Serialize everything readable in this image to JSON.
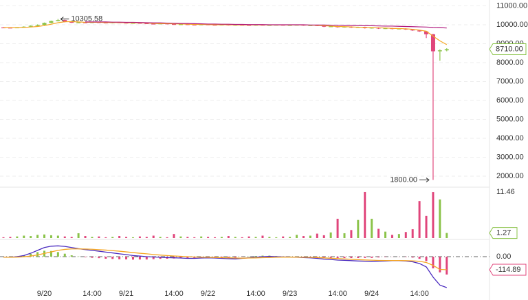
{
  "chart_data": [
    {
      "type": "candlestick",
      "categories": [
        null,
        null,
        null,
        null,
        null,
        null,
        "9/20",
        null,
        null,
        null,
        null,
        null,
        null,
        "14:00",
        null,
        null,
        null,
        null,
        "9/21",
        null,
        null,
        null,
        null,
        null,
        null,
        "14:00",
        null,
        null,
        null,
        null,
        "9/22",
        null,
        null,
        null,
        null,
        null,
        null,
        "14:00",
        null,
        null,
        null,
        null,
        "9/23",
        null,
        null,
        null,
        null,
        null,
        null,
        "14:00",
        null,
        null,
        null,
        null,
        "9/24",
        null,
        null,
        null,
        null,
        null,
        null,
        "14:00",
        null,
        null,
        null,
        null
      ],
      "open": [
        9860,
        9850,
        9840,
        9860,
        9900,
        9950,
        10000,
        10100,
        10200,
        10250,
        10150,
        10120,
        10130,
        10110,
        10140,
        10120,
        10100,
        10130,
        10110,
        10090,
        10100,
        10080,
        10060,
        10050,
        10070,
        10040,
        10020,
        10030,
        10010,
        10000,
        10020,
        10000,
        9990,
        10010,
        9980,
        10000,
        9990,
        9970,
        10000,
        9980,
        9990,
        10000,
        9980,
        9990,
        10000,
        9970,
        9980,
        9950,
        9900,
        9920,
        9870,
        9900,
        9850,
        9880,
        9820,
        9850,
        9800,
        9820,
        9780,
        9800,
        9750,
        9700,
        9650,
        9500,
        8600,
        8650
      ],
      "high": [
        9880,
        9870,
        9880,
        9920,
        9970,
        10020,
        10120,
        10220,
        10305.58,
        10270,
        10170,
        10150,
        10150,
        10160,
        10160,
        10140,
        10150,
        10150,
        10130,
        10120,
        10120,
        10100,
        10080,
        10090,
        10090,
        10060,
        10050,
        10050,
        10030,
        10040,
        10040,
        10020,
        10030,
        10030,
        10020,
        10020,
        10010,
        10020,
        10020,
        10010,
        10020,
        10020,
        10010,
        10020,
        10020,
        10000,
        10000,
        9970,
        9940,
        9940,
        9920,
        9920,
        9900,
        9900,
        9870,
        9870,
        9840,
        9840,
        9820,
        9820,
        9770,
        9720,
        9670,
        9520,
        8700,
        8760
      ],
      "low": [
        9830,
        9820,
        9820,
        9840,
        9880,
        9930,
        9980,
        10080,
        10180,
        10130,
        10100,
        10100,
        10090,
        10090,
        10100,
        10080,
        10080,
        10090,
        10070,
        10070,
        10060,
        10040,
        10030,
        10030,
        10020,
        10000,
        10000,
        9990,
        9980,
        9980,
        9980,
        9970,
        9970,
        9960,
        9960,
        9970,
        9950,
        9950,
        9960,
        9960,
        9970,
        9960,
        9960,
        9970,
        9950,
        9950,
        9930,
        9880,
        9880,
        9850,
        9850,
        9830,
        9830,
        9800,
        9800,
        9780,
        9780,
        9760,
        9760,
        9730,
        9680,
        9630,
        9300,
        1800,
        8100,
        8600
      ],
      "close": [
        9850,
        9840,
        9860,
        9900,
        9950,
        10000,
        10100,
        10200,
        10250,
        10150,
        10120,
        10130,
        10110,
        10140,
        10120,
        10100,
        10130,
        10110,
        10090,
        10100,
        10080,
        10060,
        10050,
        10070,
        10040,
        10020,
        10030,
        10010,
        10000,
        10020,
        10000,
        9990,
        10010,
        9980,
        10000,
        9990,
        9970,
        10000,
        9980,
        9990,
        10000,
        9980,
        9990,
        10000,
        9970,
        9980,
        9950,
        9900,
        9920,
        9870,
        9900,
        9850,
        9880,
        9820,
        9850,
        9800,
        9820,
        9780,
        9800,
        9750,
        9700,
        9650,
        9500,
        8600,
        8650,
        8710
      ],
      "up_color": "#8bc34a",
      "down_color": "#e0457b",
      "lines": [
        {
          "color": "#f5a623",
          "values": [
            9850,
            9850,
            9850,
            9860,
            9880,
            9910,
            9960,
            10030,
            10110,
            10160,
            10170,
            10150,
            10130,
            10130,
            10130,
            10120,
            10120,
            10120,
            10110,
            10100,
            10100,
            10090,
            10070,
            10060,
            10060,
            10050,
            10040,
            10030,
            10020,
            10020,
            10010,
            10000,
            10000,
            10000,
            9990,
            9990,
            9990,
            9990,
            9990,
            9990,
            9990,
            9990,
            9990,
            9990,
            9990,
            9980,
            9970,
            9950,
            9930,
            9910,
            9900,
            9890,
            9870,
            9860,
            9850,
            9840,
            9830,
            9810,
            9800,
            9790,
            9760,
            9720,
            9660,
            9400,
            9150,
            8950
          ]
        },
        {
          "color": "#b0197e",
          "values": [
            null,
            null,
            null,
            null,
            null,
            null,
            null,
            null,
            null,
            null,
            null,
            null,
            10150,
            10150,
            10150,
            10150,
            10140,
            10140,
            10130,
            10130,
            10120,
            10110,
            10100,
            10100,
            10090,
            10080,
            10070,
            10070,
            10060,
            10050,
            10040,
            10040,
            10030,
            10030,
            10020,
            10020,
            10010,
            10010,
            10010,
            10000,
            10000,
            10000,
            10000,
            10000,
            10000,
            9990,
            9990,
            9990,
            9980,
            9980,
            9970,
            9970,
            9960,
            9950,
            9950,
            9940,
            9930,
            9930,
            9920,
            9910,
            9900,
            9890,
            9880,
            9860,
            9850,
            9830
          ]
        }
      ],
      "high_label_index_free": null,
      "low_label": "1800.00",
      "last_label": "8710.00",
      "ylim": [
        1420,
        11310
      ],
      "yticks": [
        {
          "value": 11000,
          "label": "11000.00"
        },
        {
          "value": 10000,
          "label": "10000.00"
        },
        {
          "value": 9000,
          "label": "9000.00"
        },
        {
          "value": 8000,
          "label": "8000.00"
        },
        {
          "value": 7000,
          "label": "7000.00"
        },
        {
          "value": 6000,
          "label": "6000.00"
        },
        {
          "value": 5000,
          "label": "5000.00"
        },
        {
          "value": 4000,
          "label": "4000.00"
        },
        {
          "value": 3000,
          "label": "3000.00"
        },
        {
          "value": 2000,
          "label": "2000.00"
        }
      ],
      "grid": true
    },
    {
      "type": "bar",
      "values": [
        0.2,
        0.3,
        0.4,
        0.6,
        0.5,
        0.8,
        0.9,
        0.7,
        0.6,
        0.4,
        0.3,
        1.2,
        0.5,
        0.3,
        0.4,
        0.2,
        0.3,
        0.5,
        0.3,
        0.2,
        0.4,
        0.3,
        0.6,
        0.3,
        0.2,
        1.0,
        0.4,
        0.3,
        0.2,
        0.4,
        0.3,
        0.2,
        0.3,
        0.5,
        0.3,
        0.2,
        0.4,
        0.3,
        0.6,
        0.3,
        0.2,
        0.4,
        0.3,
        0.8,
        0.5,
        0.6,
        1.1,
        0.7,
        1.4,
        4.8,
        1.2,
        2.0,
        4.5,
        11.46,
        4.8,
        2.3,
        1.6,
        0.8,
        1.0,
        1.5,
        2.2,
        9.2,
        5.5,
        11.44,
        9.6,
        1.27
      ],
      "ylim": [
        0,
        12.65
      ],
      "yticks": [
        11.46
      ],
      "grid": false
    },
    {
      "type": "line",
      "series": [
        {
          "color": "#4a2bbf",
          "values": [
            -5,
            -5,
            0,
            10,
            30,
            55,
            80,
            92,
            95,
            90,
            80,
            70,
            62,
            55,
            48,
            40,
            33,
            25,
            18,
            10,
            5,
            0,
            -3,
            -5,
            -8,
            -10,
            -12,
            -15,
            -15,
            -12,
            -10,
            -12,
            -15,
            -18,
            -20,
            -15,
            -10,
            -5,
            0,
            2,
            0,
            -2,
            -3,
            -5,
            -8,
            -10,
            -15,
            -22,
            -25,
            -30,
            -32,
            -35,
            -38,
            -40,
            -42,
            -40,
            -38,
            -35,
            -35,
            -38,
            -45,
            -60,
            -90,
            -180,
            -250,
            -272
          ]
        },
        {
          "color": "#f5a623",
          "values": [
            -5,
            -5,
            -4,
            -1,
            5,
            15,
            28,
            42,
            55,
            64,
            68,
            68,
            67,
            65,
            61,
            58,
            53,
            48,
            42,
            36,
            30,
            25,
            19,
            14,
            10,
            6,
            3,
            0,
            -3,
            -5,
            -6,
            -7,
            -9,
            -10,
            -12,
            -13,
            -12,
            -11,
            -9,
            -7,
            -5,
            -4,
            -4,
            -4,
            -5,
            -6,
            -8,
            -11,
            -14,
            -17,
            -20,
            -23,
            -26,
            -29,
            -31,
            -33,
            -34,
            -34,
            -34,
            -35,
            -37,
            -41,
            -51,
            -77,
            -112,
            -114.89
          ]
        }
      ],
      "histogram": [
        0,
        0,
        4,
        11,
        25,
        40,
        52,
        50,
        40,
        26,
        12,
        2,
        -5,
        -10,
        -13,
        -18,
        -20,
        -23,
        -24,
        -26,
        -25,
        -25,
        -22,
        -19,
        -18,
        -16,
        -15,
        -15,
        -12,
        -7,
        -4,
        -5,
        -6,
        -8,
        -8,
        -2,
        2,
        6,
        9,
        9,
        5,
        2,
        1,
        -1,
        -3,
        -4,
        -7,
        -11,
        -11,
        -13,
        -12,
        -12,
        -12,
        -11,
        -11,
        -7,
        -4,
        -1,
        -1,
        -3,
        -8,
        -19,
        -39,
        -103,
        -138,
        -157
      ],
      "ylim": [
        -284,
        127
      ],
      "yticks": [
        {
          "value": 0,
          "label": "0.00"
        }
      ],
      "grid": true
    }
  ]
}
